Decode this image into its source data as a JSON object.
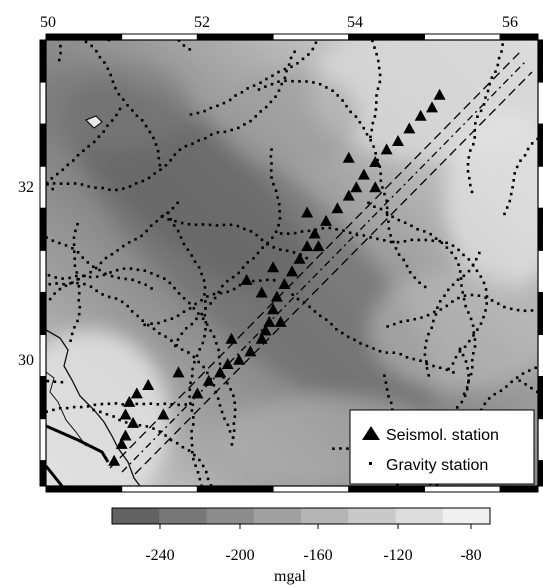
{
  "map": {
    "lon_ticks": [
      "50",
      "52",
      "54",
      "56"
    ],
    "lat_ticks": [
      "32",
      "30"
    ],
    "lon_range": [
      50,
      56.5
    ],
    "lat_range": [
      28.5,
      33.8
    ]
  },
  "legend": {
    "items": [
      {
        "symbol": "triangle",
        "label": "Seismol. station"
      },
      {
        "symbol": "dot",
        "label": "Gravity station"
      }
    ]
  },
  "colorbar": {
    "tick_labels": [
      "-240",
      "-200",
      "-160",
      "-120",
      "-80"
    ],
    "unit": "mgal",
    "colors": [
      "#626262",
      "#787878",
      "#8c8c8c",
      "#a0a0a0",
      "#b4b4b4",
      "#c8c8c8",
      "#dcdcdc",
      "#f0f0f0"
    ]
  },
  "seismic_stations": [
    [
      50.9,
      28.8
    ],
    [
      51.0,
      29.0
    ],
    [
      51.05,
      29.1
    ],
    [
      51.15,
      29.25
    ],
    [
      51.05,
      29.35
    ],
    [
      51.1,
      29.5
    ],
    [
      51.2,
      29.6
    ],
    [
      51.35,
      29.7
    ],
    [
      51.75,
      29.85
    ],
    [
      51.55,
      29.35
    ],
    [
      52.0,
      29.6
    ],
    [
      52.15,
      29.75
    ],
    [
      52.3,
      29.85
    ],
    [
      52.4,
      29.95
    ],
    [
      52.55,
      30.0
    ],
    [
      52.7,
      30.1
    ],
    [
      52.85,
      30.25
    ],
    [
      52.95,
      30.45
    ],
    [
      53.0,
      30.6
    ],
    [
      53.05,
      30.75
    ],
    [
      53.15,
      30.9
    ],
    [
      53.25,
      31.05
    ],
    [
      53.35,
      31.2
    ],
    [
      53.45,
      31.35
    ],
    [
      53.55,
      31.5
    ],
    [
      53.7,
      31.65
    ],
    [
      53.85,
      31.8
    ],
    [
      54.0,
      31.95
    ],
    [
      54.1,
      32.05
    ],
    [
      54.2,
      32.2
    ],
    [
      54.35,
      32.35
    ],
    [
      54.5,
      32.5
    ],
    [
      54.65,
      32.6
    ],
    [
      54.8,
      32.75
    ],
    [
      54.95,
      32.9
    ],
    [
      55.1,
      33.0
    ],
    [
      55.2,
      33.15
    ],
    [
      54.0,
      32.4
    ],
    [
      52.65,
      30.95
    ],
    [
      52.85,
      30.8
    ],
    [
      53.0,
      31.1
    ],
    [
      53.1,
      30.45
    ],
    [
      52.45,
      30.25
    ],
    [
      53.45,
      31.75
    ],
    [
      52.9,
      30.35
    ],
    [
      53.6,
      31.35
    ],
    [
      54.35,
      32.05
    ]
  ]
}
